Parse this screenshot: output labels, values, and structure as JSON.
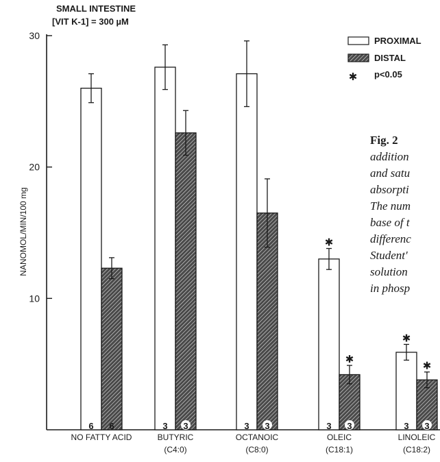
{
  "header": {
    "line1": "SMALL INTESTINE",
    "line2": "[VIT K-1] = 300 µM"
  },
  "caption": {
    "fig_label": "Fig. 2",
    "lines": [
      "addition",
      "and satu",
      "absorpti",
      "The num",
      "base of t",
      "differenc",
      "Student'",
      "solution",
      "in phosp"
    ]
  },
  "chart_data": {
    "type": "bar",
    "title": "",
    "xlabel": "",
    "ylabel": "NANOMOL/MIN/100 mg",
    "ylim": [
      0,
      30
    ],
    "yticks": [
      10,
      20,
      30
    ],
    "categories": [
      "NO FATTY ACID",
      "BUTYRIC",
      "OCTANOIC",
      "OLEIC",
      "LINOLEIC"
    ],
    "category_sublabels": [
      "",
      "(C4:0)",
      "(C8:0)",
      "(C18:1)",
      "(C18:2)"
    ],
    "series": [
      {
        "name": "PROXIMAL",
        "color": "#ffffff",
        "values": [
          26.0,
          27.6,
          27.1,
          13.0,
          5.9
        ],
        "error": [
          1.1,
          1.7,
          2.5,
          0.8,
          0.6
        ],
        "n": [
          "6",
          "3",
          "3",
          "3",
          "3"
        ],
        "significant": [
          false,
          false,
          false,
          true,
          true
        ]
      },
      {
        "name": "DISTAL",
        "color": "#333333",
        "values": [
          12.3,
          22.6,
          16.5,
          4.2,
          3.8
        ],
        "error": [
          0.8,
          1.7,
          2.6,
          0.7,
          0.6
        ],
        "n": [
          "6",
          "3",
          "3",
          "3",
          "3"
        ],
        "significant": [
          false,
          false,
          false,
          true,
          true
        ]
      }
    ],
    "legend": {
      "position": "top-right",
      "significance_label": "p<0.05",
      "significance_symbol": "✱"
    },
    "grid": false
  }
}
